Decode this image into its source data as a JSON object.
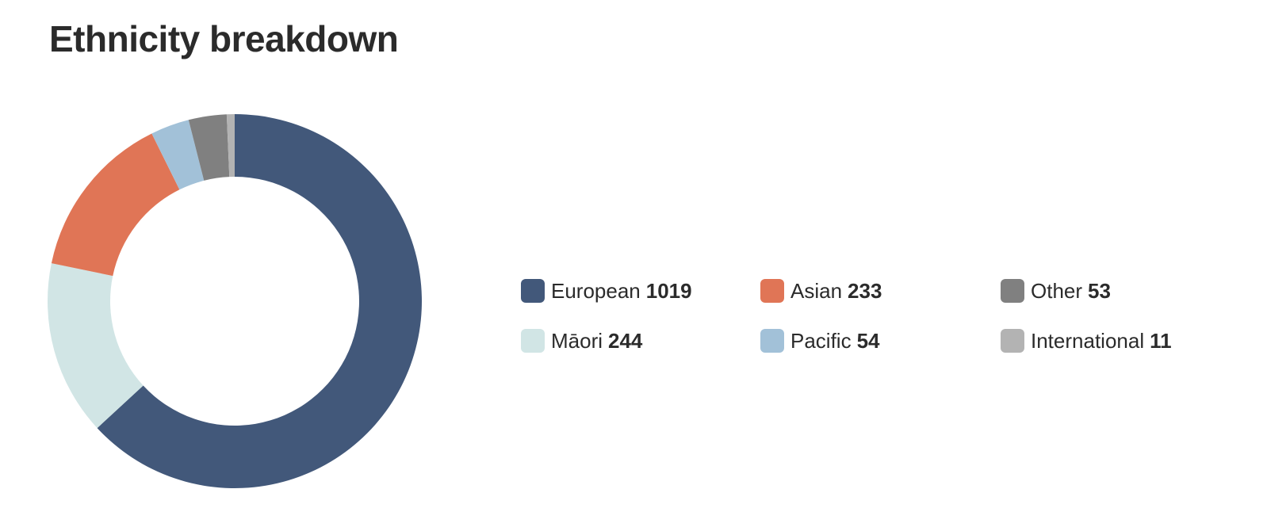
{
  "chart_data": {
    "type": "pie",
    "donut": true,
    "title": "Ethnicity breakdown",
    "categories": [
      "European",
      "Māori",
      "Asian",
      "Pacific",
      "Other",
      "International"
    ],
    "values": [
      1019,
      244,
      233,
      54,
      53,
      11
    ],
    "colors": [
      "#42587a",
      "#d1e5e5",
      "#e07556",
      "#a2c1d8",
      "#808080",
      "#b3b3b3"
    ]
  }
}
